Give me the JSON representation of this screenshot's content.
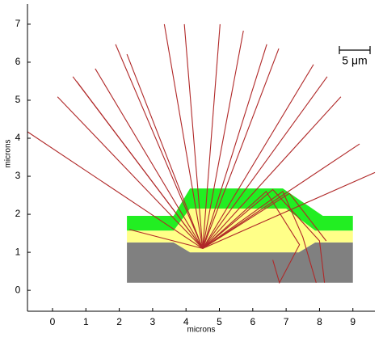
{
  "chart_data": {
    "type": "ray-trace",
    "x_label": "microns",
    "y_label": "microns",
    "scale_label": "5 μm",
    "xlim": [
      -0.75,
      9.66
    ],
    "ylim": [
      -0.55,
      7.53
    ],
    "xticks": [
      0,
      1,
      2,
      3,
      4,
      5,
      6,
      7,
      8,
      9
    ],
    "yticks": [
      0,
      1,
      2,
      3,
      4,
      5,
      6,
      7
    ],
    "layers": [
      {
        "color": "#808080",
        "x": [
          2.23,
          2.23,
          3.63,
          4.12,
          7.38,
          7.87,
          9.0,
          9.0
        ],
        "values": [
          0.2,
          1.26,
          1.26,
          1.0,
          1.0,
          1.26,
          1.26,
          0.2
        ]
      },
      {
        "color": "#ffff88",
        "x": [
          2.23,
          2.23,
          3.63,
          4.12,
          7.0,
          7.87,
          9.0,
          9.0,
          7.87,
          7.38,
          4.12,
          3.63
        ],
        "values": [
          1.26,
          1.57,
          1.57,
          2.15,
          2.15,
          1.57,
          1.57,
          1.26,
          1.26,
          1.0,
          1.0,
          1.26
        ]
      },
      {
        "color": "#22ee22",
        "x": [
          2.23,
          2.23,
          3.63,
          4.12,
          6.9,
          8.1,
          9.0,
          9.0,
          7.87,
          7.0,
          4.12,
          3.63
        ],
        "values": [
          1.57,
          1.96,
          1.96,
          2.68,
          2.68,
          1.96,
          1.96,
          1.57,
          1.57,
          2.15,
          2.15,
          1.57
        ]
      }
    ],
    "series": [
      {
        "color": "#b02828",
        "x": [
          4.5,
          -0.75
        ],
        "values": [
          1.1,
          4.17
        ]
      },
      {
        "color": "#b02828",
        "x": [
          4.5,
          0.15
        ],
        "values": [
          1.1,
          5.09
        ]
      },
      {
        "color": "#b02828",
        "x": [
          4.5,
          0.61
        ],
        "values": [
          1.1,
          5.62
        ]
      },
      {
        "color": "#b02828",
        "x": [
          4.5,
          0.72
        ],
        "values": [
          1.1,
          5.5
        ]
      },
      {
        "color": "#b02828",
        "x": [
          4.5,
          1.28
        ],
        "values": [
          1.1,
          5.83
        ]
      },
      {
        "color": "#b02828",
        "x": [
          4.5,
          1.89
        ],
        "values": [
          1.1,
          6.47
        ]
      },
      {
        "color": "#b02828",
        "x": [
          4.5,
          2.23
        ],
        "values": [
          1.1,
          6.21
        ]
      },
      {
        "color": "#b02828",
        "x": [
          4.5,
          3.35
        ],
        "values": [
          1.1,
          7.0
        ]
      },
      {
        "color": "#b02828",
        "x": [
          4.5,
          3.95
        ],
        "values": [
          1.1,
          7.0
        ]
      },
      {
        "color": "#b02828",
        "x": [
          4.5,
          5.02
        ],
        "values": [
          1.1,
          7.0
        ]
      },
      {
        "color": "#b02828",
        "x": [
          4.5,
          5.72
        ],
        "values": [
          1.1,
          6.83
        ]
      },
      {
        "color": "#b02828",
        "x": [
          4.5,
          6.42
        ],
        "values": [
          1.1,
          6.47
        ]
      },
      {
        "color": "#b02828",
        "x": [
          4.5,
          6.78
        ],
        "values": [
          1.1,
          6.36
        ]
      },
      {
        "color": "#b02828",
        "x": [
          4.5,
          7.82
        ],
        "values": [
          1.1,
          5.94
        ]
      },
      {
        "color": "#b02828",
        "x": [
          4.5,
          8.23
        ],
        "values": [
          1.1,
          5.62
        ]
      },
      {
        "color": "#b02828",
        "x": [
          4.5,
          8.64
        ],
        "values": [
          1.1,
          5.09
        ]
      },
      {
        "color": "#b02828",
        "x": [
          4.5,
          9.2
        ],
        "values": [
          1.1,
          3.85
        ]
      },
      {
        "color": "#b02828",
        "x": [
          4.5,
          9.66
        ],
        "values": [
          1.1,
          3.1
        ]
      },
      {
        "color": "#b02828",
        "x": [
          4.5,
          2.3
        ],
        "values": [
          1.1,
          1.6
        ]
      },
      {
        "color": "#b02828",
        "x": [
          4.5,
          6.6,
          8.0,
          8.15
        ],
        "values": [
          1.1,
          2.65,
          1.3,
          0.2
        ]
      },
      {
        "color": "#b02828",
        "x": [
          4.5,
          6.9,
          7.5,
          7.9
        ],
        "values": [
          1.1,
          2.6,
          1.4,
          0.2
        ]
      },
      {
        "color": "#b02828",
        "x": [
          4.5,
          6.4,
          7.4,
          6.8,
          6.6
        ],
        "values": [
          1.1,
          2.6,
          1.2,
          0.2,
          0.8
        ]
      },
      {
        "color": "#b02828",
        "x": [
          4.5,
          7.1,
          8.2
        ],
        "values": [
          1.1,
          2.55,
          1.3
        ]
      }
    ]
  }
}
